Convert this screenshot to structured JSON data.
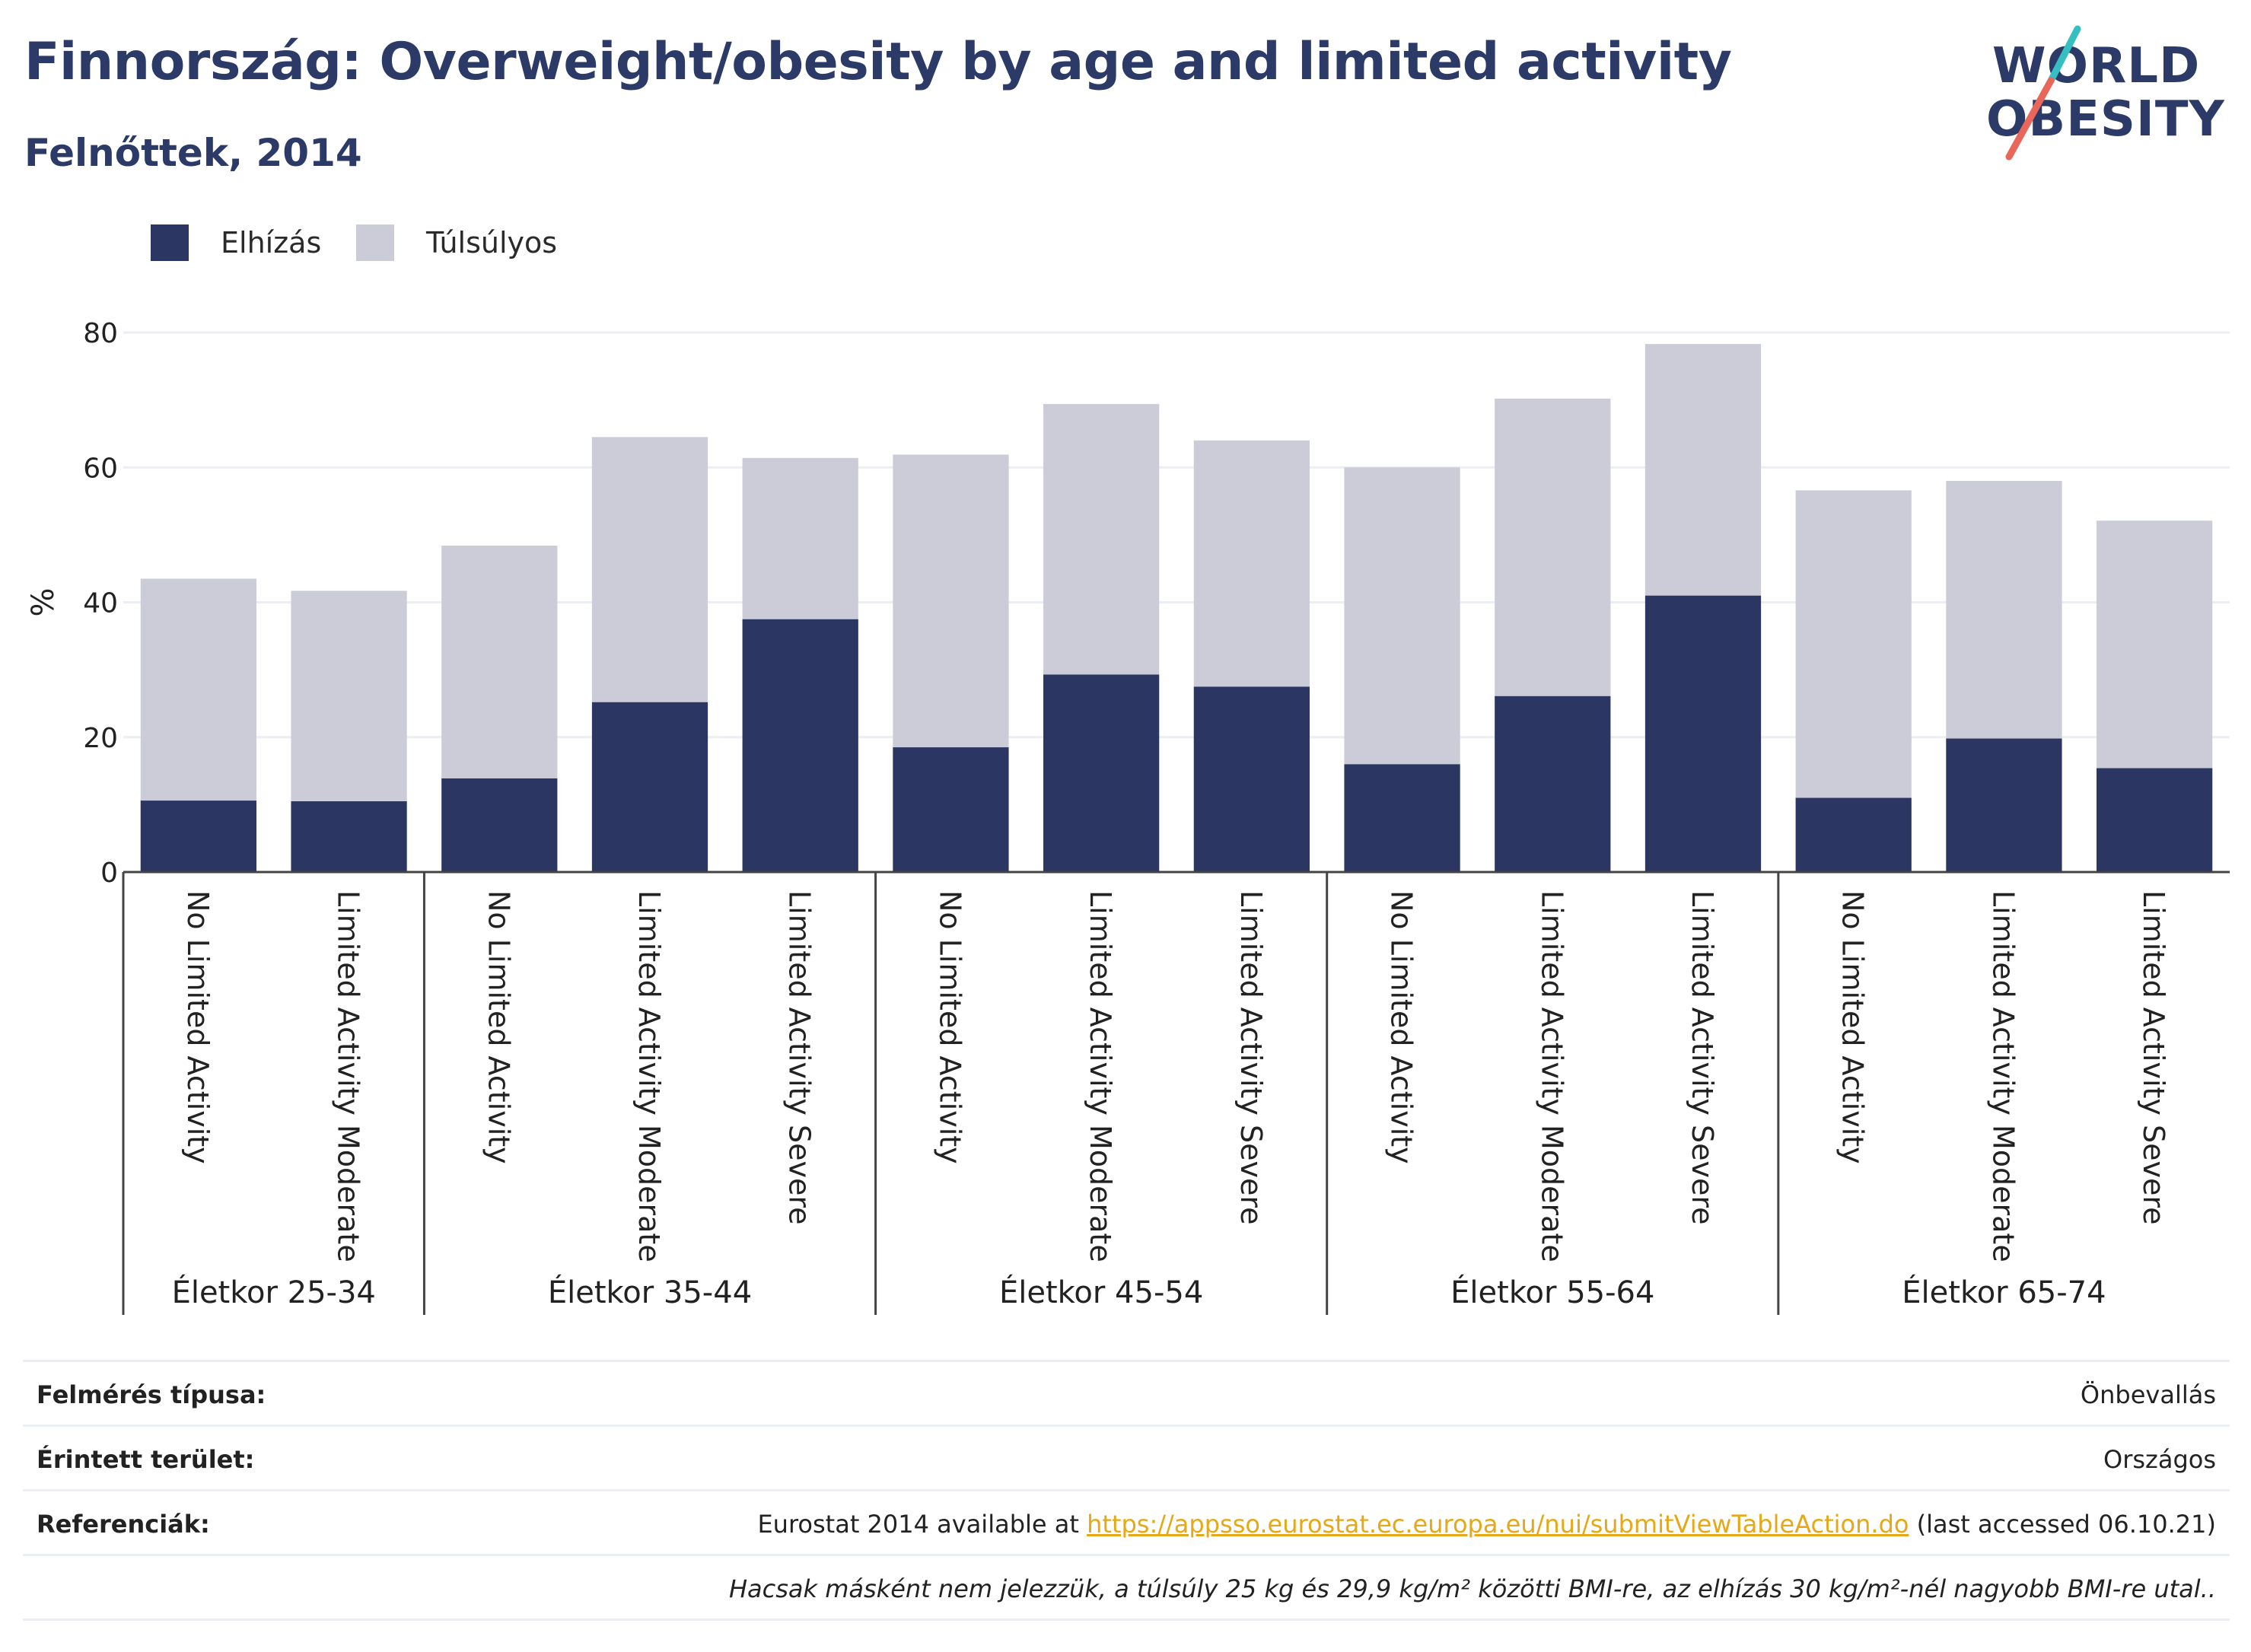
{
  "header": {
    "title": "Finnország: Overweight/obesity by age and limited activity",
    "subtitle": "Felnőttek, 2014"
  },
  "logo": {
    "line1": "WORLD",
    "line2": "OBESITY"
  },
  "legend": [
    {
      "label": "Elhízás",
      "color": "#2b3663"
    },
    {
      "label": "Túlsúlyos",
      "color": "#cbccd8"
    }
  ],
  "chart_data": {
    "type": "bar",
    "stacked": true,
    "ylabel": "%",
    "ylim": [
      0,
      80
    ],
    "yticks": [
      0,
      20,
      40,
      60,
      80
    ],
    "grid": true,
    "groups": [
      {
        "label": "Életkor 25-34",
        "categories": [
          "No Limited Activity",
          "Limited Activity Moderate"
        ]
      },
      {
        "label": "Életkor 35-44",
        "categories": [
          "No Limited Activity",
          "Limited Activity Moderate",
          "Limited Activity Severe"
        ]
      },
      {
        "label": "Életkor 45-54",
        "categories": [
          "No Limited Activity",
          "Limited Activity Moderate",
          "Limited Activity Severe"
        ]
      },
      {
        "label": "Életkor 55-64",
        "categories": [
          "No Limited Activity",
          "Limited Activity Moderate",
          "Limited Activity Severe"
        ]
      },
      {
        "label": "Életkor 65-74",
        "categories": [
          "No Limited Activity",
          "Limited Activity Moderate",
          "Limited Activity Severe"
        ]
      }
    ],
    "series": [
      {
        "name": "Elhízás",
        "color": "#2b3663",
        "values": [
          10.6,
          10.5,
          13.9,
          25.2,
          37.5,
          18.5,
          29.3,
          27.5,
          16.0,
          26.1,
          41.0,
          11.0,
          19.8,
          15.4
        ]
      },
      {
        "name": "Túlsúlyos",
        "color": "#cbccd8",
        "values": [
          32.9,
          31.2,
          34.5,
          39.3,
          23.9,
          43.4,
          40.1,
          36.5,
          44.0,
          44.1,
          37.3,
          45.6,
          38.2,
          36.7
        ]
      }
    ]
  },
  "info": [
    {
      "key": "Felmérés típusa:",
      "value": "Önbevallás"
    },
    {
      "key": "Érintett terület:",
      "value": "Országos"
    },
    {
      "key": "Referenciák:",
      "value_pre": "Eurostat 2014 available at ",
      "link": "https://appsso.eurostat.ec.europa.eu/nui/submitViewTableAction.do",
      "value_post": " (last accessed 06.10.21)"
    },
    {
      "key": "",
      "value": "Hacsak másként nem jelezzük, a túlsúly 25 kg és 29,9 kg/m² közötti BMI-re, az elhízás 30 kg/m²-nél nagyobb BMI-re utal.."
    }
  ]
}
